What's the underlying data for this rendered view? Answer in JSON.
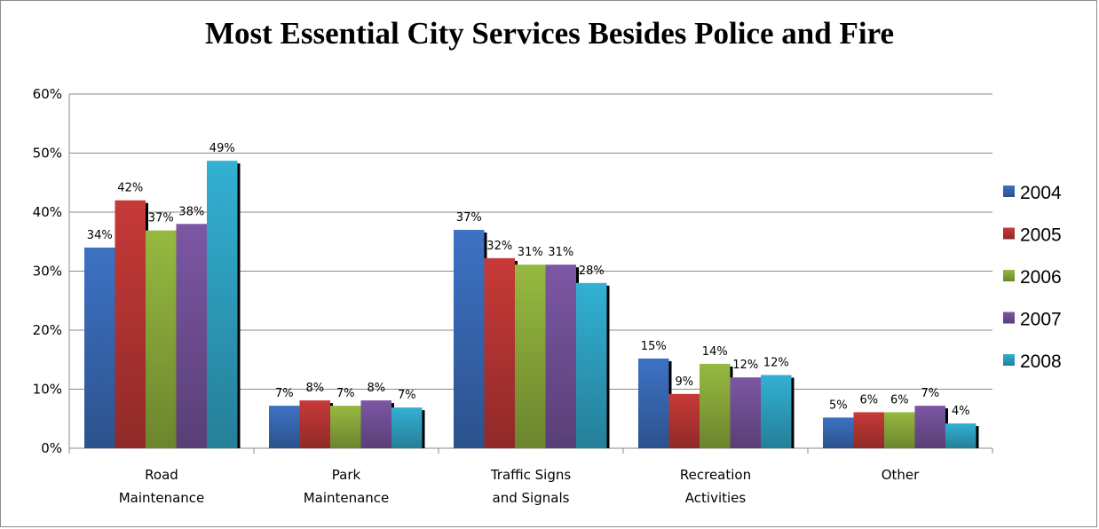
{
  "chart_data": {
    "type": "bar",
    "title": "Most Essential City Services Besides Police and Fire",
    "xlabel": "",
    "ylabel": "",
    "ylim": [
      0,
      60
    ],
    "yticks": [
      "0%",
      "10%",
      "20%",
      "30%",
      "40%",
      "50%",
      "60%"
    ],
    "grid": true,
    "legend_position": "right",
    "categories": [
      [
        "Road",
        "Maintenance"
      ],
      [
        "Park",
        "Maintenance"
      ],
      [
        "Traffic Signs",
        "and Signals"
      ],
      [
        "Recreation",
        "Activities"
      ],
      [
        "Other"
      ]
    ],
    "series": [
      {
        "name": "2004",
        "color": "#3d72c4",
        "values": [
          34,
          7,
          37,
          15,
          5
        ]
      },
      {
        "name": "2005",
        "color": "#c73a38",
        "values": [
          42,
          8,
          32,
          9,
          6
        ]
      },
      {
        "name": "2006",
        "color": "#96b940",
        "values": [
          37,
          7,
          31,
          14,
          6
        ]
      },
      {
        "name": "2007",
        "color": "#7c57a4",
        "values": [
          38,
          8,
          31,
          12,
          7
        ]
      },
      {
        "name": "2008",
        "color": "#33b0d3",
        "values": [
          49,
          7,
          28,
          12,
          4
        ]
      }
    ],
    "plot_values": [
      [
        34,
        7.2,
        37,
        15.2,
        5.2
      ],
      [
        42,
        8.1,
        32.2,
        9.2,
        6.1
      ],
      [
        36.9,
        7.2,
        31.1,
        14.3,
        6.1
      ],
      [
        38,
        8.1,
        31.1,
        12,
        7.2
      ],
      [
        48.7,
        6.9,
        28,
        12.4,
        4.2
      ]
    ]
  }
}
